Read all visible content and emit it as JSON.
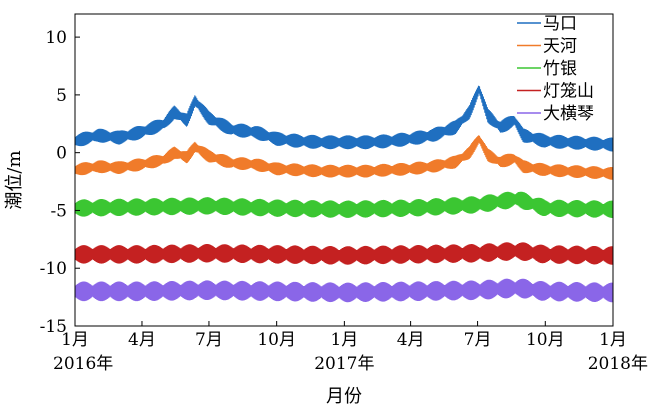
{
  "chart_data": {
    "type": "line",
    "title": "",
    "xlabel": "月份",
    "ylabel": "潮位/m",
    "xlim": [
      "2016-01-01",
      "2018-01-01"
    ],
    "ylim": [
      -15,
      12
    ],
    "yticks": [
      -15,
      -10,
      -5,
      0,
      5,
      10
    ],
    "xticks": [
      {
        "date": "2016-01-01",
        "label": "1月",
        "sublabel": "2016年"
      },
      {
        "date": "2016-04-01",
        "label": "4月",
        "sublabel": ""
      },
      {
        "date": "2016-07-01",
        "label": "7月",
        "sublabel": ""
      },
      {
        "date": "2016-10-01",
        "label": "10月",
        "sublabel": ""
      },
      {
        "date": "2017-01-01",
        "label": "1月",
        "sublabel": "2017年"
      },
      {
        "date": "2017-04-01",
        "label": "4月",
        "sublabel": ""
      },
      {
        "date": "2017-07-01",
        "label": "7月",
        "sublabel": ""
      },
      {
        "date": "2017-10-01",
        "label": "10月",
        "sublabel": ""
      },
      {
        "date": "2018-01-01",
        "label": "1月",
        "sublabel": "2018年"
      }
    ],
    "grid": false,
    "legend_position": "top-right",
    "series": [
      {
        "name": "马口",
        "color": "#1f6fc0",
        "x": [
          "2016-01-01",
          "2016-02-01",
          "2016-03-01",
          "2016-04-01",
          "2016-05-01",
          "2016-05-15",
          "2016-06-01",
          "2016-06-12",
          "2016-07-01",
          "2016-08-01",
          "2016-09-01",
          "2016-10-01",
          "2016-11-01",
          "2016-12-01",
          "2017-01-01",
          "2017-02-01",
          "2017-03-01",
          "2017-04-01",
          "2017-05-01",
          "2017-06-01",
          "2017-06-20",
          "2017-07-03",
          "2017-07-15",
          "2017-08-01",
          "2017-08-20",
          "2017-09-01",
          "2017-10-01",
          "2017-11-01",
          "2017-12-01",
          "2018-01-01"
        ],
        "y": [
          1.0,
          1.5,
          1.3,
          1.8,
          2.5,
          3.5,
          2.8,
          4.5,
          3.0,
          2.0,
          1.8,
          1.2,
          1.0,
          0.9,
          0.9,
          0.9,
          1.0,
          1.2,
          1.5,
          2.2,
          3.5,
          5.5,
          3.2,
          2.2,
          2.8,
          1.5,
          1.0,
          0.9,
          0.8,
          0.7
        ]
      },
      {
        "name": "天河",
        "color": "#f07b2a",
        "x": [
          "2016-01-01",
          "2016-02-01",
          "2016-03-01",
          "2016-04-01",
          "2016-05-01",
          "2016-05-15",
          "2016-06-01",
          "2016-06-12",
          "2016-07-01",
          "2016-08-01",
          "2016-09-01",
          "2016-10-01",
          "2016-11-01",
          "2016-12-01",
          "2017-01-01",
          "2017-02-01",
          "2017-03-01",
          "2017-04-01",
          "2017-05-01",
          "2017-06-01",
          "2017-06-20",
          "2017-07-03",
          "2017-07-15",
          "2017-08-01",
          "2017-08-20",
          "2017-09-01",
          "2017-10-01",
          "2017-11-01",
          "2017-12-01",
          "2018-01-01"
        ],
        "y": [
          -1.5,
          -1.2,
          -1.3,
          -1.0,
          -0.6,
          0.0,
          -0.4,
          0.5,
          -0.3,
          -0.9,
          -1.0,
          -1.4,
          -1.5,
          -1.6,
          -1.6,
          -1.6,
          -1.5,
          -1.4,
          -1.2,
          -0.8,
          0.0,
          1.2,
          -0.2,
          -0.8,
          -0.5,
          -1.2,
          -1.5,
          -1.6,
          -1.7,
          -1.8
        ]
      },
      {
        "name": "竹银",
        "color": "#3bc632",
        "x": [
          "2016-01-01",
          "2016-04-01",
          "2016-07-01",
          "2016-10-01",
          "2017-01-01",
          "2017-04-01",
          "2017-07-01",
          "2017-08-25",
          "2017-10-01",
          "2018-01-01"
        ],
        "y": [
          -4.8,
          -4.7,
          -4.6,
          -4.8,
          -4.9,
          -4.8,
          -4.5,
          -4.0,
          -4.8,
          -4.9
        ]
      },
      {
        "name": "灯笼山",
        "color": "#c42121",
        "x": [
          "2016-01-01",
          "2016-04-01",
          "2016-07-01",
          "2016-10-01",
          "2017-01-01",
          "2017-04-01",
          "2017-07-01",
          "2017-08-25",
          "2017-10-01",
          "2018-01-01"
        ],
        "y": [
          -8.8,
          -8.8,
          -8.7,
          -8.8,
          -8.9,
          -8.8,
          -8.7,
          -8.5,
          -8.8,
          -8.9
        ]
      },
      {
        "name": "大横琴",
        "color": "#8a66e8",
        "x": [
          "2016-01-01",
          "2016-04-01",
          "2016-07-01",
          "2016-10-01",
          "2017-01-01",
          "2017-04-01",
          "2017-07-01",
          "2017-08-25",
          "2017-10-01",
          "2018-01-01"
        ],
        "y": [
          -12.0,
          -12.0,
          -11.9,
          -12.0,
          -12.1,
          -12.0,
          -11.9,
          -11.7,
          -12.0,
          -12.1
        ]
      }
    ]
  }
}
